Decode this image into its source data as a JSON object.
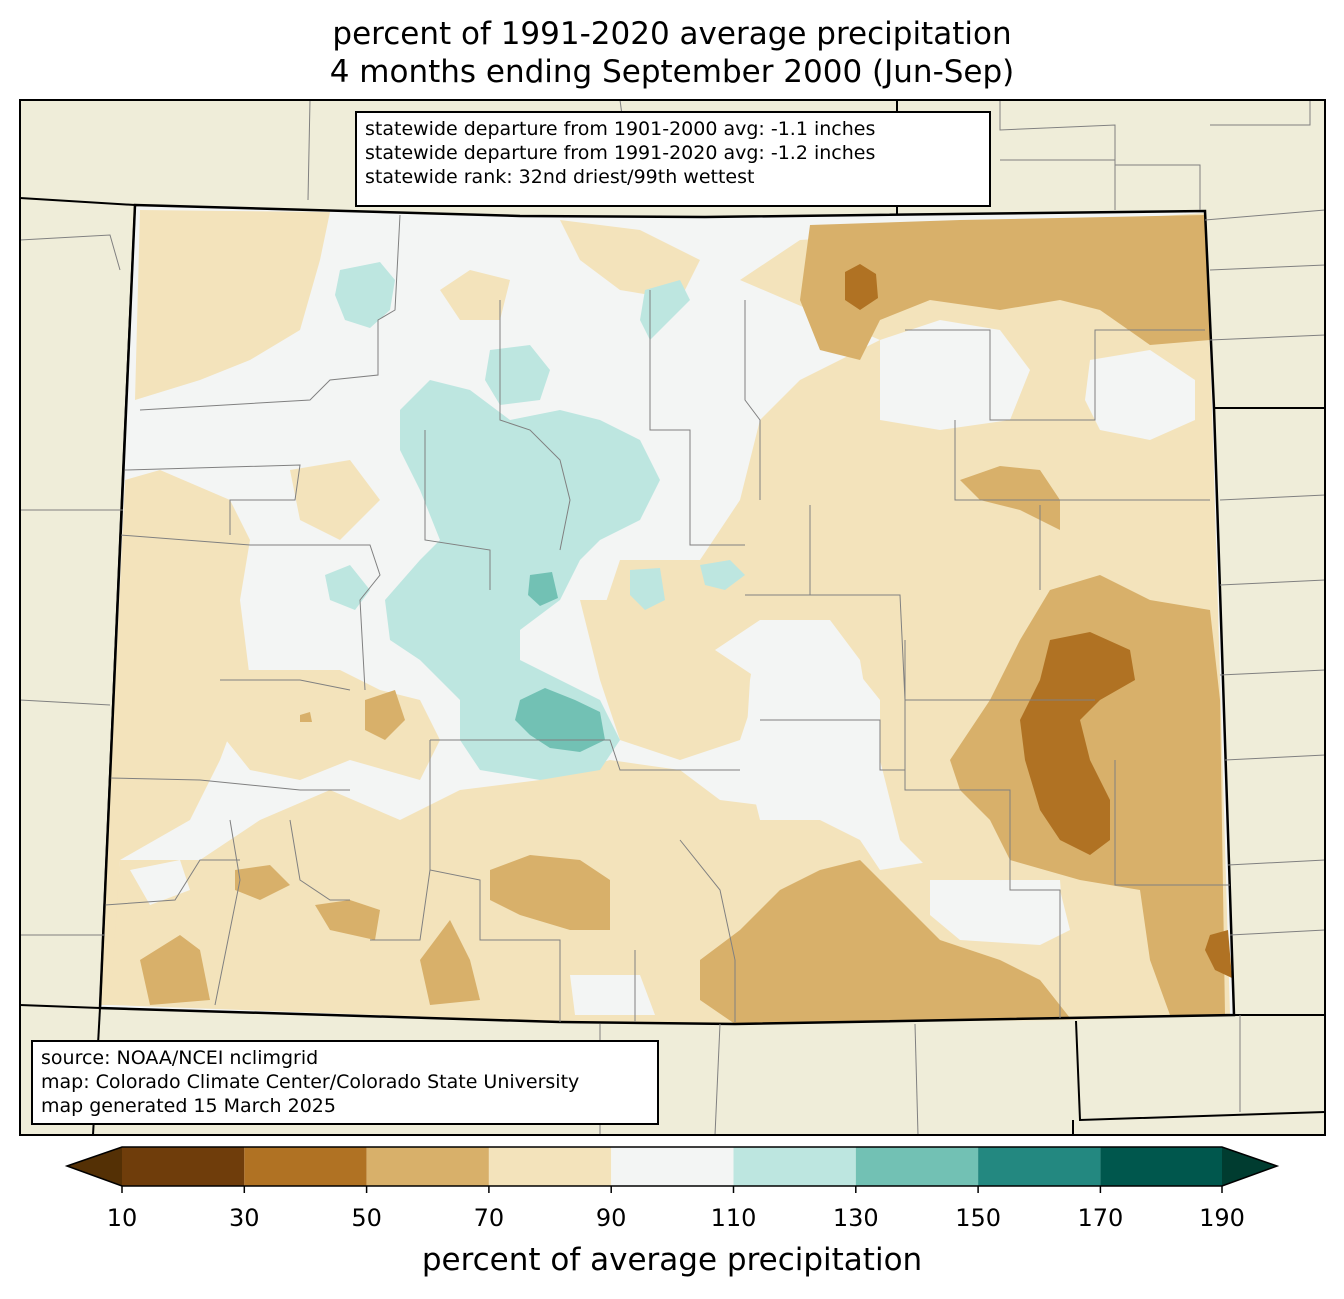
{
  "title": {
    "line1": "percent of 1991-2020 average precipitation",
    "line2": "4 months ending September 2000 (Jun-Sep)"
  },
  "stats": {
    "line1": "statewide departure from 1901-2000 avg: -1.1 inches",
    "line2": "statewide departure from 1991-2020 avg: -1.2 inches",
    "line3": "statewide rank: 32nd driest/99th wettest"
  },
  "source": {
    "line1": "source: NOAA/NCEI nclimgrid",
    "line2": "map: Colorado Climate Center/Colorado State University",
    "line3": "map generated 15 March 2025"
  },
  "colorbar": {
    "label": "percent of average precipitation",
    "ticks": [
      "10",
      "30",
      "50",
      "70",
      "90",
      "110",
      "130",
      "150",
      "170",
      "190"
    ],
    "colors": {
      "under": "#543005",
      "b10_30": "#6f3d0b",
      "b30_50": "#b07223",
      "b50_70": "#d8b06a",
      "b70_90": "#f3e3bb",
      "b90_110": "#f3f5f4",
      "b110_130": "#bde6e0",
      "b130_150": "#72c1b4",
      "b150_170": "#238880",
      "b170_190": "#00574d",
      "over": "#003c30"
    }
  },
  "map_colors": {
    "background": "#efedd9",
    "state_line": "#000000",
    "county_line": "#808080"
  }
}
